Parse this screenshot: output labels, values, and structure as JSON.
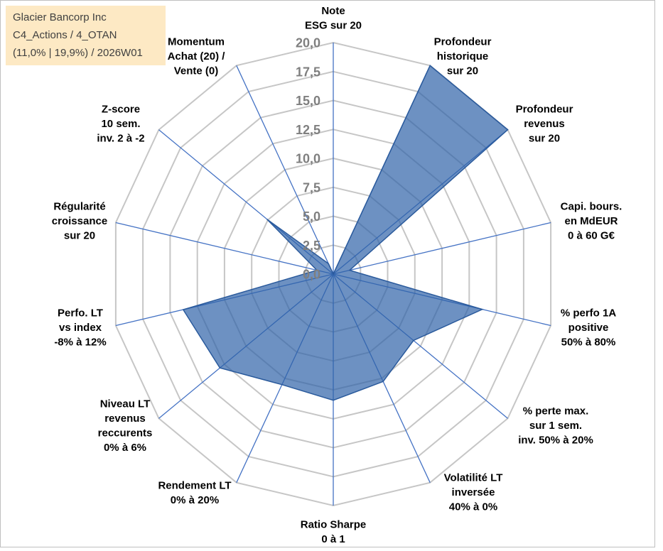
{
  "info_box": {
    "company": "Glacier Bancorp Inc",
    "category": "C4_Actions / 4_OTAN",
    "stats": "(11,0% | 19,9%) / 2026W01"
  },
  "chart_data": {
    "type": "radar",
    "axis_range": [
      0,
      20
    ],
    "grid": true,
    "ticks": [
      0,
      2.5,
      5,
      7.5,
      10,
      12.5,
      15,
      17.5,
      20
    ],
    "tick_labels": [
      "0,0",
      "2,5",
      "5,0",
      "7,5",
      "10,0",
      "12,5",
      "15,0",
      "17,5",
      "20,0"
    ],
    "categories": [
      [
        "Note",
        "ESG sur 20"
      ],
      [
        "Profondeur",
        "historique",
        "sur 20"
      ],
      [
        "Profondeur",
        "revenus",
        "sur 20"
      ],
      [
        "Capi. bours.",
        "en MdEUR",
        "0 à 60 G€"
      ],
      [
        "% perfo 1A",
        "positive",
        "50% à 80%"
      ],
      [
        "% perte max.",
        "sur 1 sem.",
        "inv. 50% à 20%"
      ],
      [
        "Volatilité LT",
        "inversée",
        "40% à 0%"
      ],
      [
        "Ratio Sharpe",
        "0 à 1"
      ],
      [
        "Rendement LT",
        "0% à 20%"
      ],
      [
        "Niveau LT",
        "revenus",
        "reccurents",
        "0% à 6%"
      ],
      [
        "Perfo. LT",
        "vs index",
        "-8% à 12%"
      ],
      [
        "Régularité",
        "croissance",
        "sur 20"
      ],
      [
        "Z-score",
        "10 sem.",
        "inv. 2 à -2"
      ],
      [
        "Momentum",
        "Achat (20) /",
        "Vente (0)"
      ]
    ],
    "values": [
      0,
      20,
      20,
      1.5,
      13.7,
      9.2,
      10.3,
      10.9,
      10.6,
      13.0,
      13.8,
      1.5,
      7.6,
      1.0
    ],
    "colors": {
      "series_fill": "#2f62a8",
      "series_stroke": "#2a5a9c",
      "spoke": "#4472c4",
      "grid": "#c6c6c6",
      "tick_label": "#7f7f7f",
      "info_box_bg": "#fde9c4",
      "frame": "#bfbfbf"
    }
  }
}
